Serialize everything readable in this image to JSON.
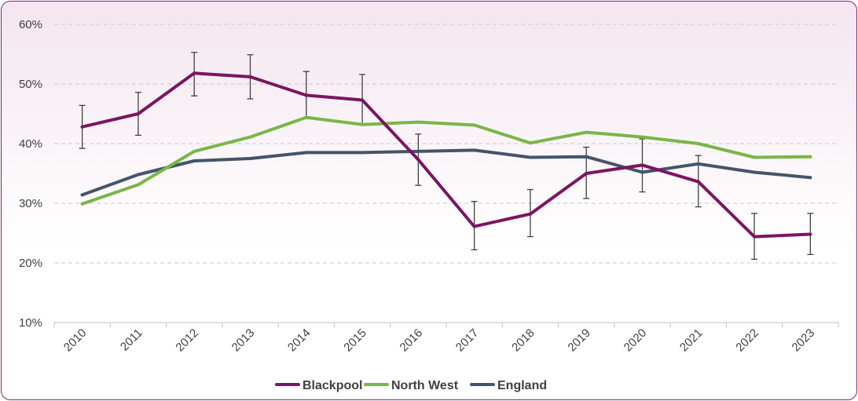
{
  "chart_data": {
    "type": "line",
    "title": "",
    "xlabel": "",
    "ylabel": "",
    "categories": [
      "2010",
      "2011",
      "2012",
      "2013",
      "2014",
      "2015",
      "2016",
      "2017",
      "2018",
      "2019",
      "2020",
      "2021",
      "2022",
      "2023"
    ],
    "ylim": [
      10,
      60
    ],
    "yticks": [
      10,
      20,
      30,
      40,
      50,
      60
    ],
    "ytick_labels": [
      "10%",
      "20%",
      "30%",
      "40%",
      "50%",
      "60%"
    ],
    "grid": true,
    "legend_position": "bottom",
    "series": [
      {
        "name": "Blackpool",
        "color": "#7b1561",
        "values": [
          42.8,
          45.0,
          51.8,
          51.2,
          48.1,
          47.3,
          37.3,
          26.1,
          28.2,
          35.0,
          36.4,
          33.6,
          24.4,
          24.8
        ],
        "error_low": [
          39.2,
          41.4,
          48.0,
          47.5,
          44.2,
          43.3,
          33.0,
          22.2,
          24.4,
          30.8,
          31.9,
          29.4,
          20.6,
          21.4
        ],
        "error_high": [
          46.4,
          48.6,
          55.3,
          54.9,
          52.1,
          51.6,
          41.6,
          30.3,
          32.3,
          39.4,
          40.8,
          38.0,
          28.3,
          28.3
        ]
      },
      {
        "name": "North West",
        "color": "#7ab648",
        "values": [
          29.9,
          33.1,
          38.7,
          41.1,
          44.4,
          43.2,
          43.6,
          43.1,
          40.1,
          41.9,
          41.1,
          40.0,
          37.7,
          37.8
        ]
      },
      {
        "name": "England",
        "color": "#44546a",
        "values": [
          31.4,
          34.8,
          37.1,
          37.5,
          38.5,
          38.5,
          38.7,
          38.9,
          37.7,
          37.8,
          35.2,
          36.6,
          35.2,
          34.3
        ]
      }
    ]
  }
}
